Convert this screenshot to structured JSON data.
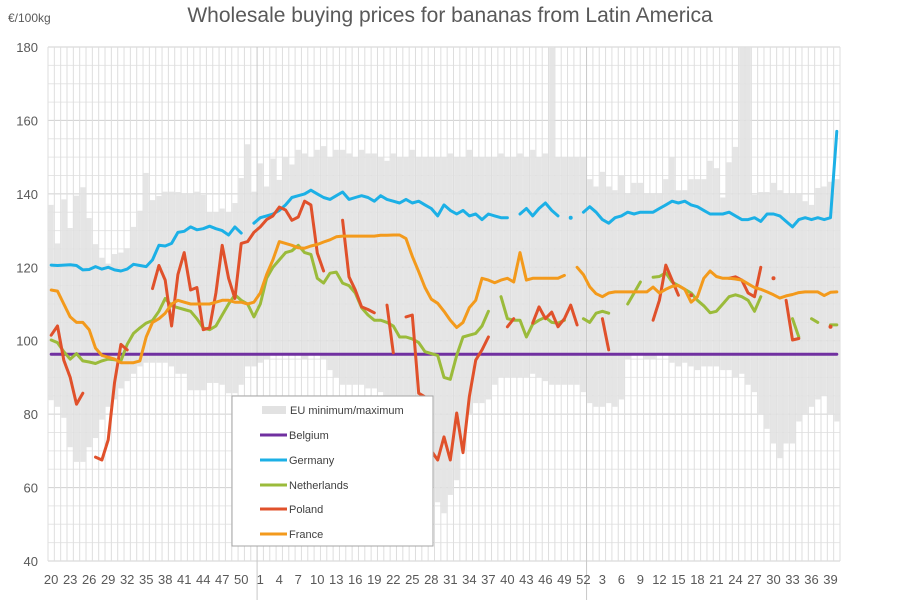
{
  "chart_data": {
    "type": "line",
    "title": "Wholesale buying prices for bananas from Latin America",
    "ylabel": "€/100kg",
    "xlabel": "",
    "ylim": [
      40,
      180
    ],
    "y_ticks": [
      "40",
      "60",
      "80",
      "100",
      "120",
      "140",
      "160",
      "180"
    ],
    "x_ticks": [
      "20",
      "23",
      "26",
      "29",
      "32",
      "35",
      "38",
      "41",
      "44",
      "47",
      "50",
      "1",
      "4",
      "7",
      "10",
      "13",
      "16",
      "19",
      "22",
      "25",
      "28",
      "31",
      "34",
      "37",
      "40",
      "43",
      "46",
      "49",
      "52",
      "3",
      "6",
      "9",
      "12",
      "15",
      "18",
      "21",
      "24",
      "27",
      "30",
      "33",
      "36",
      "39"
    ],
    "grid": true,
    "legend_position": "bottom-left inside",
    "x": [
      20,
      21,
      22,
      23,
      24,
      25,
      26,
      27,
      28,
      29,
      30,
      31,
      32,
      33,
      34,
      35,
      36,
      37,
      38,
      39,
      40,
      41,
      42,
      43,
      44,
      45,
      46,
      47,
      48,
      49,
      50,
      51,
      52,
      1,
      2,
      3,
      4,
      5,
      6,
      7,
      8,
      9,
      10,
      11,
      12,
      13,
      14,
      15,
      16,
      17,
      18,
      19,
      20,
      21,
      22,
      23,
      24,
      25,
      26,
      27,
      28,
      29,
      30,
      31,
      32,
      33,
      34,
      35,
      36,
      37,
      38,
      39,
      40,
      41,
      42,
      43,
      44,
      45,
      46,
      47,
      48,
      49,
      50,
      51,
      52,
      1,
      2,
      3,
      4,
      5,
      6,
      7,
      8,
      9,
      10,
      11,
      12,
      13,
      14,
      15,
      16,
      17,
      18,
      19,
      20,
      21,
      22,
      23,
      24,
      25,
      26,
      27,
      28,
      29,
      30,
      31,
      32,
      33,
      34,
      35,
      36,
      37,
      38,
      39,
      40
    ],
    "range": {
      "name": "EU minimum/maximum",
      "color": "#e2e2e2",
      "max": [
        137,
        126.5,
        138.5,
        130.7,
        139.5,
        141.8,
        133.4,
        126.3,
        122.6,
        121,
        123.6,
        124,
        125.2,
        131,
        135.4,
        145.7,
        138.3,
        139.4,
        140.6,
        140.6,
        140.5,
        140,
        140,
        140.6,
        139.7,
        135,
        135,
        136,
        135,
        137.5,
        144.3,
        153.5,
        140.6,
        148.3,
        142,
        149.6,
        143.8,
        150,
        148,
        152,
        151,
        150,
        152,
        153,
        150,
        152,
        152,
        151,
        150,
        152,
        151,
        151,
        150,
        149,
        151,
        150,
        150,
        152,
        150,
        150,
        150,
        150,
        150,
        151,
        150,
        150,
        152,
        150,
        150,
        150,
        150,
        151,
        150,
        150,
        151,
        150,
        152,
        150,
        151,
        180,
        150,
        150,
        150,
        150,
        150,
        144,
        142,
        146,
        142,
        141,
        145,
        140,
        143,
        143,
        140,
        140,
        140,
        144,
        150,
        141,
        141,
        144,
        144,
        144,
        149,
        147,
        139,
        148.6,
        152.8,
        180,
        180,
        139.7,
        140.5,
        140.5,
        143,
        141,
        140,
        140,
        140,
        138,
        137,
        141.6,
        142,
        143.3,
        144
      ],
      "min": [
        83.8,
        82,
        79,
        71,
        67,
        67,
        71,
        73.5,
        78.5,
        82,
        84,
        87,
        89,
        91,
        93,
        94,
        94,
        94,
        94,
        93,
        91,
        91,
        86.5,
        86.5,
        86.5,
        88.5,
        88.5,
        88,
        85.7,
        85.7,
        88,
        93,
        93,
        94,
        95,
        96,
        96,
        96,
        96,
        96,
        95,
        96,
        96,
        95,
        92,
        90,
        88,
        88,
        88,
        88,
        87,
        87,
        86,
        85,
        85,
        85,
        85,
        84,
        84,
        84,
        60,
        56,
        53,
        58,
        62,
        70,
        80,
        83,
        83,
        84,
        88,
        90,
        90,
        90,
        90,
        90,
        91,
        90,
        89,
        88,
        88,
        88,
        88,
        88,
        86,
        83,
        82,
        82,
        83,
        82,
        84,
        95,
        96,
        96,
        95,
        95,
        96,
        96,
        94,
        93,
        94,
        93,
        92,
        93,
        93,
        93,
        92,
        92,
        90,
        91,
        88,
        86,
        80,
        76,
        72,
        68,
        72,
        72,
        78,
        80,
        82,
        84,
        85,
        80,
        78
      ]
    },
    "series": [
      {
        "name": "Belgium",
        "color": "#7030a0",
        "values": [
          96.3,
          96.3,
          96.3,
          96.3,
          96.3,
          96.3,
          96.3,
          96.3,
          96.3,
          96.3,
          96.3,
          96.3,
          96.3,
          96.3,
          96.3,
          96.3,
          96.3,
          96.3,
          96.3,
          96.3,
          96.3,
          96.3,
          96.3,
          96.3,
          96.3,
          96.3,
          96.3,
          96.3,
          96.3,
          96.3,
          96.3,
          96.3,
          96.3,
          96.3,
          96.3,
          96.3,
          96.3,
          96.3,
          96.3,
          96.3,
          96.3,
          96.3,
          96.3,
          96.3,
          96.3,
          96.3,
          96.3,
          96.3,
          96.3,
          96.3,
          96.3,
          96.3,
          96.3,
          96.3,
          96.3,
          96.3,
          96.3,
          96.3,
          96.3,
          96.3,
          96.3,
          96.3,
          96.3,
          96.3,
          96.3,
          96.3,
          96.3,
          96.3,
          96.3,
          96.3,
          96.3,
          96.3,
          96.3,
          96.3,
          96.3,
          96.3,
          96.3,
          96.3,
          96.3,
          96.3,
          96.3,
          96.3,
          96.3,
          96.3,
          96.3,
          96.3,
          96.3,
          96.3,
          96.3,
          96.3,
          96.3,
          96.3,
          96.3,
          96.3,
          96.3,
          96.3,
          96.3,
          96.3,
          96.3,
          96.3,
          96.3,
          96.3,
          96.3,
          96.3,
          96.3,
          96.3,
          96.3,
          96.3,
          96.3,
          96.3,
          96.3,
          96.3,
          96.3,
          96.3,
          96.3,
          96.3,
          96.3,
          96.3,
          96.3,
          96.3,
          96.3,
          96.3,
          96.3,
          96.3,
          96.3
        ]
      },
      {
        "name": "Germany",
        "color": "#1cb0e6",
        "values": [
          120.6,
          120.5,
          120.6,
          120.7,
          120.5,
          119.3,
          119.4,
          120.2,
          119.5,
          120.0,
          119.3,
          119.0,
          119.5,
          120.8,
          120.5,
          120.2,
          122,
          126,
          125.8,
          126.5,
          129.5,
          129.8,
          131.0,
          130.2,
          130.5,
          131.2,
          130.5,
          130.0,
          128.8,
          131.0,
          129.3,
          null,
          132,
          133.5,
          134,
          134.5,
          135.5,
          137,
          139,
          139.5,
          140,
          141,
          140,
          139,
          138.5,
          139.5,
          140.5,
          138.5,
          139,
          139.5,
          139,
          138,
          139.5,
          138.5,
          138,
          137.5,
          138.5,
          137.5,
          138,
          137,
          136,
          134,
          137,
          135.5,
          134.5,
          135.5,
          134,
          134.5,
          133,
          134.5,
          134,
          133.5,
          133.5,
          null,
          134.5,
          136,
          134,
          136,
          137.5,
          135.5,
          134,
          null,
          133.5,
          null,
          135,
          136.5,
          135,
          133,
          132,
          133.5,
          134,
          135,
          134.5,
          135,
          135,
          135,
          136,
          137,
          138,
          137.5,
          138,
          137,
          136.5,
          135.5,
          134.5,
          134.5,
          134.5,
          135,
          134,
          133,
          133,
          133.5,
          132.5,
          134.5,
          134.5,
          134,
          132.5,
          131,
          133,
          133.5,
          133,
          133.5,
          133,
          133.5,
          157
        ]
      },
      {
        "name": "Netherlands",
        "color": "#9bbb3b",
        "values": [
          100.2,
          99.5,
          97,
          95,
          96.5,
          94.5,
          94.2,
          93.8,
          94.5,
          95,
          94.8,
          94.5,
          99,
          102,
          103.5,
          104.8,
          105.5,
          108,
          111.5,
          109.5,
          109,
          108.5,
          108,
          106,
          103.5,
          103,
          104,
          107,
          110,
          112.5,
          111,
          110,
          106.5,
          110,
          117,
          120,
          122,
          124,
          124.5,
          126,
          124,
          123.5,
          117,
          115.7,
          118.4,
          118.7,
          115.7,
          115,
          113,
          109,
          107,
          105.6,
          105.6,
          105,
          104,
          101,
          101,
          100.5,
          99.5,
          97,
          96.5,
          96,
          90,
          89.5,
          96,
          101,
          101.5,
          102,
          104,
          108,
          null,
          112,
          106,
          105.6,
          105.6,
          101,
          104.5,
          105.6,
          106.4,
          105,
          104.8,
          105.6,
          null,
          null,
          106,
          105,
          107.5,
          108,
          107.5,
          null,
          null,
          110,
          113,
          116,
          null,
          117.3,
          117.5,
          118.5,
          116,
          115,
          114,
          113,
          111,
          109.5,
          107.6,
          108,
          110,
          112,
          112.5,
          112,
          111,
          108,
          112,
          null,
          null,
          null,
          null,
          106,
          101,
          null,
          106,
          105,
          null,
          104.3,
          104.3
        ]
      },
      {
        "name": "Poland",
        "color": "#e0512b",
        "values": [
          101.5,
          104,
          94.7,
          90,
          82.7,
          85.7,
          null,
          68.3,
          67.5,
          73,
          88.5,
          99,
          97.5,
          null,
          null,
          null,
          114.2,
          120.5,
          116.5,
          104,
          118,
          124,
          113.8,
          114.5,
          103,
          103.5,
          113,
          126,
          117,
          111.5,
          126.5,
          127,
          129.5,
          131,
          133,
          134,
          136.4,
          135.6,
          132.8,
          133.7,
          138,
          137,
          123.9,
          119,
          null,
          null,
          132.8,
          117.4,
          113.8,
          109.2,
          108.5,
          107.6,
          null,
          109.7,
          96.7,
          null,
          106.5,
          107,
          85.7,
          84.7,
          70,
          67.5,
          73.8,
          67.5,
          80.3,
          69.5,
          84.7,
          94.7,
          97.5,
          101,
          null,
          null,
          103.8,
          106,
          null,
          null,
          104.8,
          109.2,
          106,
          107.8,
          103.8,
          106,
          109.7,
          104.3,
          null,
          null,
          null,
          106,
          97.5,
          null,
          null,
          null,
          null,
          null,
          null,
          105.6,
          111,
          120.6,
          116.5,
          112.4,
          null,
          112.4,
          null,
          null,
          null,
          null,
          null,
          117,
          117.4,
          116.5,
          113,
          112,
          120,
          null,
          117,
          null,
          111,
          100.2,
          100.6,
          null,
          null,
          null,
          null,
          103.8,
          null
        ]
      },
      {
        "name": "France",
        "color": "#f39a1c",
        "values": [
          113.8,
          113.5,
          110,
          106.5,
          105,
          105,
          103,
          98,
          96,
          95.5,
          95,
          94,
          94,
          94,
          94.5,
          101,
          105,
          106,
          107.5,
          110,
          111,
          110.5,
          110,
          110,
          110,
          110,
          110.5,
          111,
          111,
          110.5,
          110.5,
          110,
          110.5,
          113,
          118,
          122,
          127,
          126.5,
          126,
          125.3,
          125.2,
          125.8,
          126.2,
          126.9,
          127.5,
          128.3,
          128.5,
          128.5,
          128.5,
          128.5,
          128.5,
          128.5,
          128.7,
          128.7,
          128.8,
          128.8,
          127.8,
          123,
          118.8,
          114.5,
          111.3,
          110.2,
          108,
          105.6,
          103.6,
          105,
          109,
          111,
          117,
          116.5,
          115.8,
          116.5,
          117,
          116,
          124,
          116.5,
          117,
          117,
          117,
          117,
          117,
          117.8,
          null,
          120,
          118,
          114.7,
          112.8,
          112,
          113,
          113.3,
          113.3,
          113.3,
          113.3,
          113.3,
          113.3,
          114.6,
          113,
          114,
          114.8,
          115,
          114,
          110.5,
          112,
          117,
          119,
          117.5,
          117,
          117,
          116.8,
          116.5,
          115.5,
          114.5,
          114,
          113.3,
          112.5,
          111.6,
          112.2,
          112.6,
          113.1,
          113.3,
          113.3,
          113.3,
          112.3,
          113.2,
          113.3
        ]
      }
    ]
  }
}
